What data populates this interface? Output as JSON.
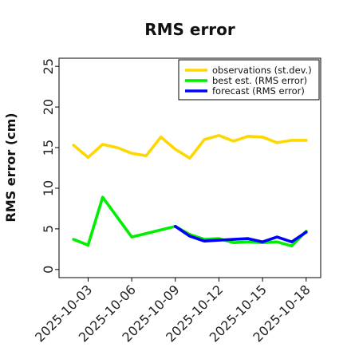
{
  "chart_data": {
    "type": "line",
    "title": "RMS error",
    "xlabel": "",
    "ylabel": "RMS error (cm)",
    "xlim": [
      "2025-10-01",
      "2025-10-19"
    ],
    "ylim": [
      -1,
      26
    ],
    "yticks": [
      0,
      5,
      10,
      15,
      20,
      25
    ],
    "xticks": [
      "2025-10-03",
      "2025-10-06",
      "2025-10-09",
      "2025-10-12",
      "2025-10-15",
      "2025-10-18"
    ],
    "highlighted_xtick": "2025-10-09",
    "highlight_color": "#228b22",
    "grid": false,
    "legend_position": "top-right",
    "series": [
      {
        "name": "observations (st.dev.)",
        "color": "#ffd700",
        "x": [
          "2025-10-02",
          "2025-10-03",
          "2025-10-04",
          "2025-10-05",
          "2025-10-06",
          "2025-10-07",
          "2025-10-08",
          "2025-10-09",
          "2025-10-10",
          "2025-10-11",
          "2025-10-12",
          "2025-10-13",
          "2025-10-14",
          "2025-10-15",
          "2025-10-16",
          "2025-10-17",
          "2025-10-18"
        ],
        "values": [
          15.3,
          13.8,
          15.4,
          15.0,
          14.3,
          14.0,
          16.3,
          14.8,
          13.7,
          16.0,
          16.5,
          15.8,
          16.4,
          16.3,
          15.6,
          15.9,
          15.9
        ]
      },
      {
        "name": "best est. (RMS error)",
        "color": "#00ee00",
        "x": [
          "2025-10-02",
          "2025-10-03",
          "2025-10-04",
          "2025-10-06",
          "2025-10-09",
          "2025-10-10",
          "2025-10-11",
          "2025-10-12",
          "2025-10-13",
          "2025-10-14",
          "2025-10-15",
          "2025-10-16",
          "2025-10-17",
          "2025-10-18"
        ],
        "values": [
          3.7,
          3.0,
          8.9,
          4.0,
          5.3,
          4.3,
          3.7,
          3.8,
          3.3,
          3.4,
          3.3,
          3.4,
          2.9,
          4.7
        ]
      },
      {
        "name": "forecast (RMS error)",
        "color": "#0000ff",
        "x": [
          "2025-10-09",
          "2025-10-10",
          "2025-10-11",
          "2025-10-12",
          "2025-10-13",
          "2025-10-14",
          "2025-10-15",
          "2025-10-16",
          "2025-10-17",
          "2025-10-18"
        ],
        "values": [
          5.3,
          4.1,
          3.5,
          3.6,
          3.7,
          3.8,
          3.4,
          4.0,
          3.4,
          4.6
        ]
      }
    ]
  }
}
